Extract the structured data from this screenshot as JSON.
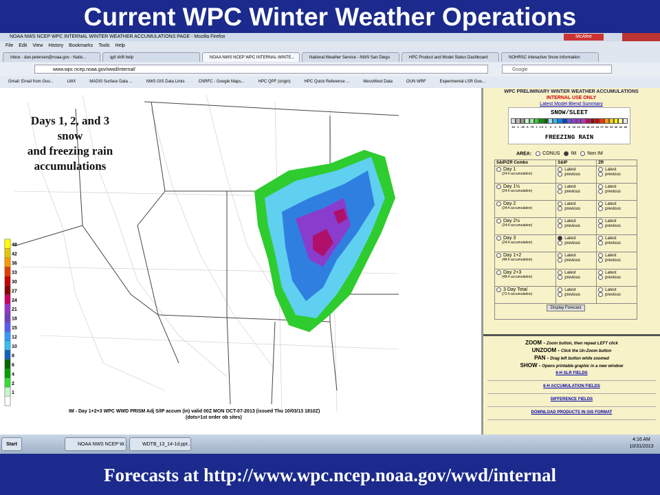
{
  "slide": {
    "title": "Current WPC Winter Weather Operations",
    "footer": "Forecasts at http://www.wpc.ncep.noaa.gov/wwd/internal"
  },
  "browser": {
    "window_title": "NOAA NWS NCEP WPC INTERNAL WINTER WEATHER ACCUMULATIONS PAGE - Mozilla Firefox",
    "addon": "McAfee",
    "menu": [
      "File",
      "Edit",
      "View",
      "History",
      "Bookmarks",
      "Tools",
      "Help"
    ],
    "tabs": [
      "Inbox - dan.petersen@noaa.gov - Natio...",
      "qpf shift help",
      "NOAA NWS NCEP WPC INTERNAL WINTE...",
      "National Weather Service - NWS San Diego",
      "HPC Product and Model Status Dashboard",
      "NOHRSC Interactive Snow Information"
    ],
    "url": "www.wpc.ncep.noaa.gov/wwd/internal/",
    "search": "Google",
    "bookmarks": [
      "Gmail: Email from Goo...",
      "LWX",
      "MADIS Surface Data ...",
      "NWS GIS Data Links",
      "CNRFC - Google Maps...",
      "HPC QPF (origin)",
      "HPC Quick Reference ...",
      "MesoWest Data",
      "OUN WRF",
      "Experimental LSR Goo..."
    ]
  },
  "map": {
    "annotation": [
      "Days 1, 2, and 3",
      "snow",
      "and freezing rain",
      "accumulations"
    ],
    "legend": [
      "48",
      "42",
      "36",
      "33",
      "30",
      "27",
      "24",
      "21",
      "18",
      "15",
      "12",
      "10",
      "8",
      "6",
      "4",
      "2",
      "1"
    ],
    "caption": "IM - Day 1+2+3 WPC WWD PRISM Adj S/IP accum (in) valid 00Z MON OCT-07-2013 (issued Thu 10/03/13 1810Z)",
    "caption_note": "(dots=1st order ob sites)"
  },
  "panel": {
    "header": "WPC PRELIMINARY WINTER WEATHER ACCUMULATIONS",
    "notice": "INTERNAL USE ONLY",
    "summary_link": "Latest Model Blend Summary",
    "scale_title": "SNOW/SLEET",
    "scale": [
      ".01",
      ".1",
      ".25",
      ".5",
      ".75",
      "1",
      "1.5",
      "2",
      "3",
      "4",
      "5",
      "6",
      "8",
      "10",
      "12",
      "15",
      "18",
      "21",
      "24",
      "27",
      "30",
      "33",
      "36",
      "42",
      "48"
    ],
    "scale_footer": "FREEZING RAIN",
    "area_label": "AREA:",
    "areas": [
      "CONUS",
      "IM",
      "Non IM"
    ],
    "columns": [
      "S&IP/ZR Combo",
      "S&IP",
      "ZR"
    ],
    "rows": [
      [
        "Day 1",
        "(24-h accumulation)"
      ],
      [
        "Day 1½",
        "(24-h accumulation)"
      ],
      [
        "Day 2",
        "(24-h accumulation)"
      ],
      [
        "Day 2½",
        "(24-h accumulation)"
      ],
      [
        "Day 3",
        "(24-h accumulation)"
      ],
      [
        "Day 1+2",
        "(48-h accumulation)"
      ],
      [
        "Day 2+3",
        "(48-h accumulation)"
      ],
      [
        "3 Day Total",
        "(72-h accumulation)"
      ]
    ],
    "options": [
      "Latest",
      "previous"
    ],
    "button": "Display Forecast",
    "help": [
      [
        "ZOOM -",
        "Zoom button, then repeat LEFT click"
      ],
      [
        "UNZOOM -",
        "Click the Un-Zoom button"
      ],
      [
        "PAN -",
        "Drag left button while zoomed"
      ],
      [
        "SHOW -",
        "Opens printable graphic in a new window"
      ]
    ],
    "links": [
      "6-H SLR FIELDS",
      "6-H ACCUMULATION FIELDS",
      "DIFFERENCE FIELDS",
      "DOWNLOAD PRODUCTS IN GIS FORMAT"
    ]
  },
  "taskbar": {
    "start": "Start",
    "items": [
      "NOAA NWS NCEP W...",
      "WDTB_13_14-1d.ppt..."
    ],
    "time": "4:16 AM",
    "date": "10/31/2013"
  }
}
